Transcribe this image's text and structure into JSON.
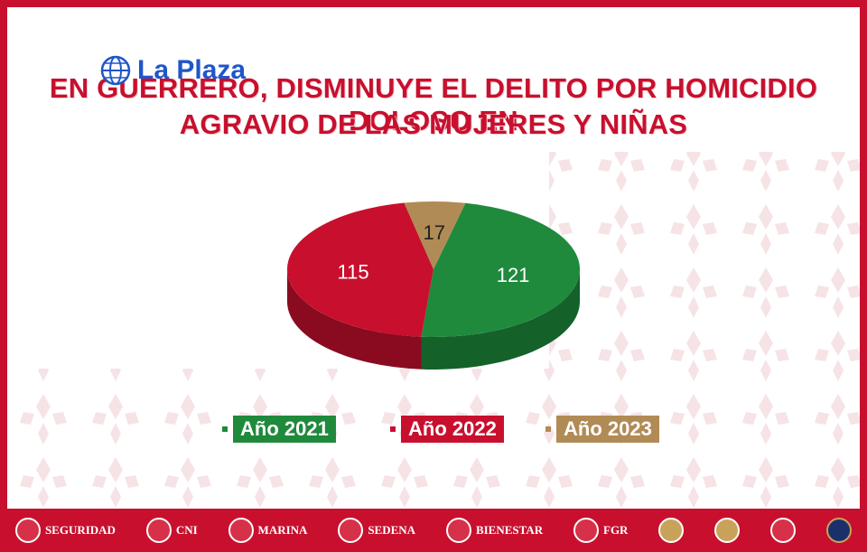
{
  "brand": {
    "name": "La Plaza",
    "icon": "globe-icon"
  },
  "title": {
    "line1": "EN GUERRERO, DISMINUYE EL DELITO POR HOMICIDIO DOLOSO EN",
    "line2": "AGRAVIO DE LAS MUJERES Y NIÑAS"
  },
  "colors": {
    "frame": "#c8102e",
    "green": "#1f8a3c",
    "red": "#c8102e",
    "tan": "#b18b55",
    "brand": "#1f56c9"
  },
  "chart_data": {
    "type": "pie",
    "style": "3d",
    "title": "",
    "categories": [
      "Año 2021",
      "Año 2022",
      "Año 2023"
    ],
    "values": [
      121,
      115,
      17
    ],
    "data_labels": [
      "121",
      "115",
      "17"
    ],
    "legend": "bottom"
  },
  "footer": {
    "items": [
      {
        "label": "SEGURIDAD",
        "icon": "seal-icon"
      },
      {
        "label": "CNI",
        "icon": "seal-icon"
      },
      {
        "label": "MARINA",
        "icon": "seal-icon"
      },
      {
        "label": "SEDENA",
        "icon": "seal-icon"
      },
      {
        "label": "BIENESTAR",
        "icon": "seal-icon"
      },
      {
        "label": "FGR",
        "icon": "seal-icon"
      },
      {
        "label": "",
        "icon": "eagle-seal-icon"
      },
      {
        "label": "",
        "icon": "guard-emblem-icon"
      },
      {
        "label": "",
        "icon": "seguridad-publica-logo"
      },
      {
        "label": "",
        "icon": "fge-badge-icon"
      }
    ]
  }
}
